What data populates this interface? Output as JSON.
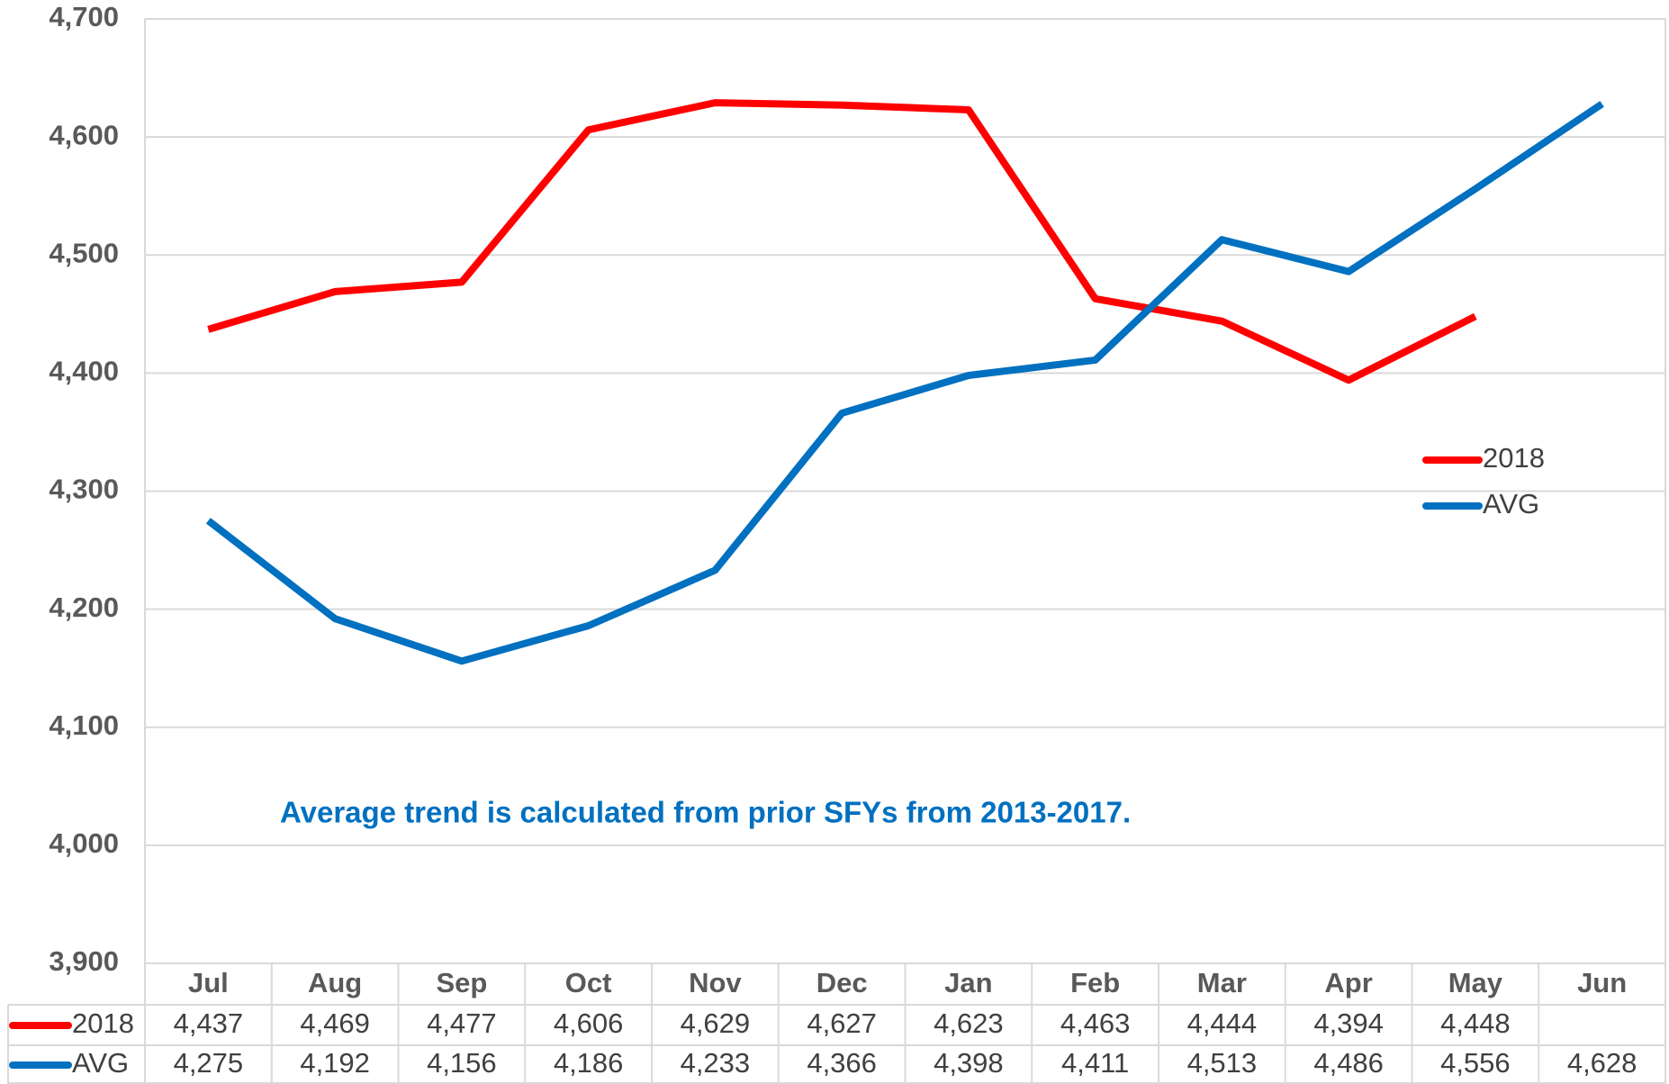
{
  "chart_data": {
    "type": "line",
    "categories": [
      "Jul",
      "Aug",
      "Sep",
      "Oct",
      "Nov",
      "Dec",
      "Jan",
      "Feb",
      "Mar",
      "Apr",
      "May",
      "Jun"
    ],
    "series": [
      {
        "name": "2018",
        "color": "#ff0000",
        "values": [
          4437,
          4469,
          4477,
          4606,
          4629,
          4627,
          4623,
          4463,
          4444,
          4394,
          4448,
          null
        ],
        "value_labels": [
          "4,437",
          "4,469",
          "4,477",
          "4,606",
          "4,629",
          "4,627",
          "4,623",
          "4,463",
          "4,444",
          "4,394",
          "4,448",
          null
        ]
      },
      {
        "name": "AVG",
        "color": "#0070c0",
        "values": [
          4275,
          4192,
          4156,
          4186,
          4233,
          4366,
          4398,
          4411,
          4513,
          4486,
          4556,
          4628
        ],
        "value_labels": [
          "4,275",
          "4,192",
          "4,156",
          "4,186",
          "4,233",
          "4,366",
          "4,398",
          "4,411",
          "4,513",
          "4,486",
          "4,556",
          "4,628"
        ]
      }
    ],
    "ylim": [
      3900,
      4700
    ],
    "yticks": [
      {
        "value": 3900,
        "label": "3,900"
      },
      {
        "value": 4000,
        "label": "4,000"
      },
      {
        "value": 4100,
        "label": "4,100"
      },
      {
        "value": 4200,
        "label": "4,200"
      },
      {
        "value": 4300,
        "label": "4,300"
      },
      {
        "value": 4400,
        "label": "4,400"
      },
      {
        "value": 4500,
        "label": "4,500"
      },
      {
        "value": 4600,
        "label": "4,600"
      },
      {
        "value": 4700,
        "label": "4,700"
      }
    ],
    "grid": true,
    "legend": "right",
    "annotation": "Average trend is calculated from prior SFYs from 2013-2017."
  }
}
